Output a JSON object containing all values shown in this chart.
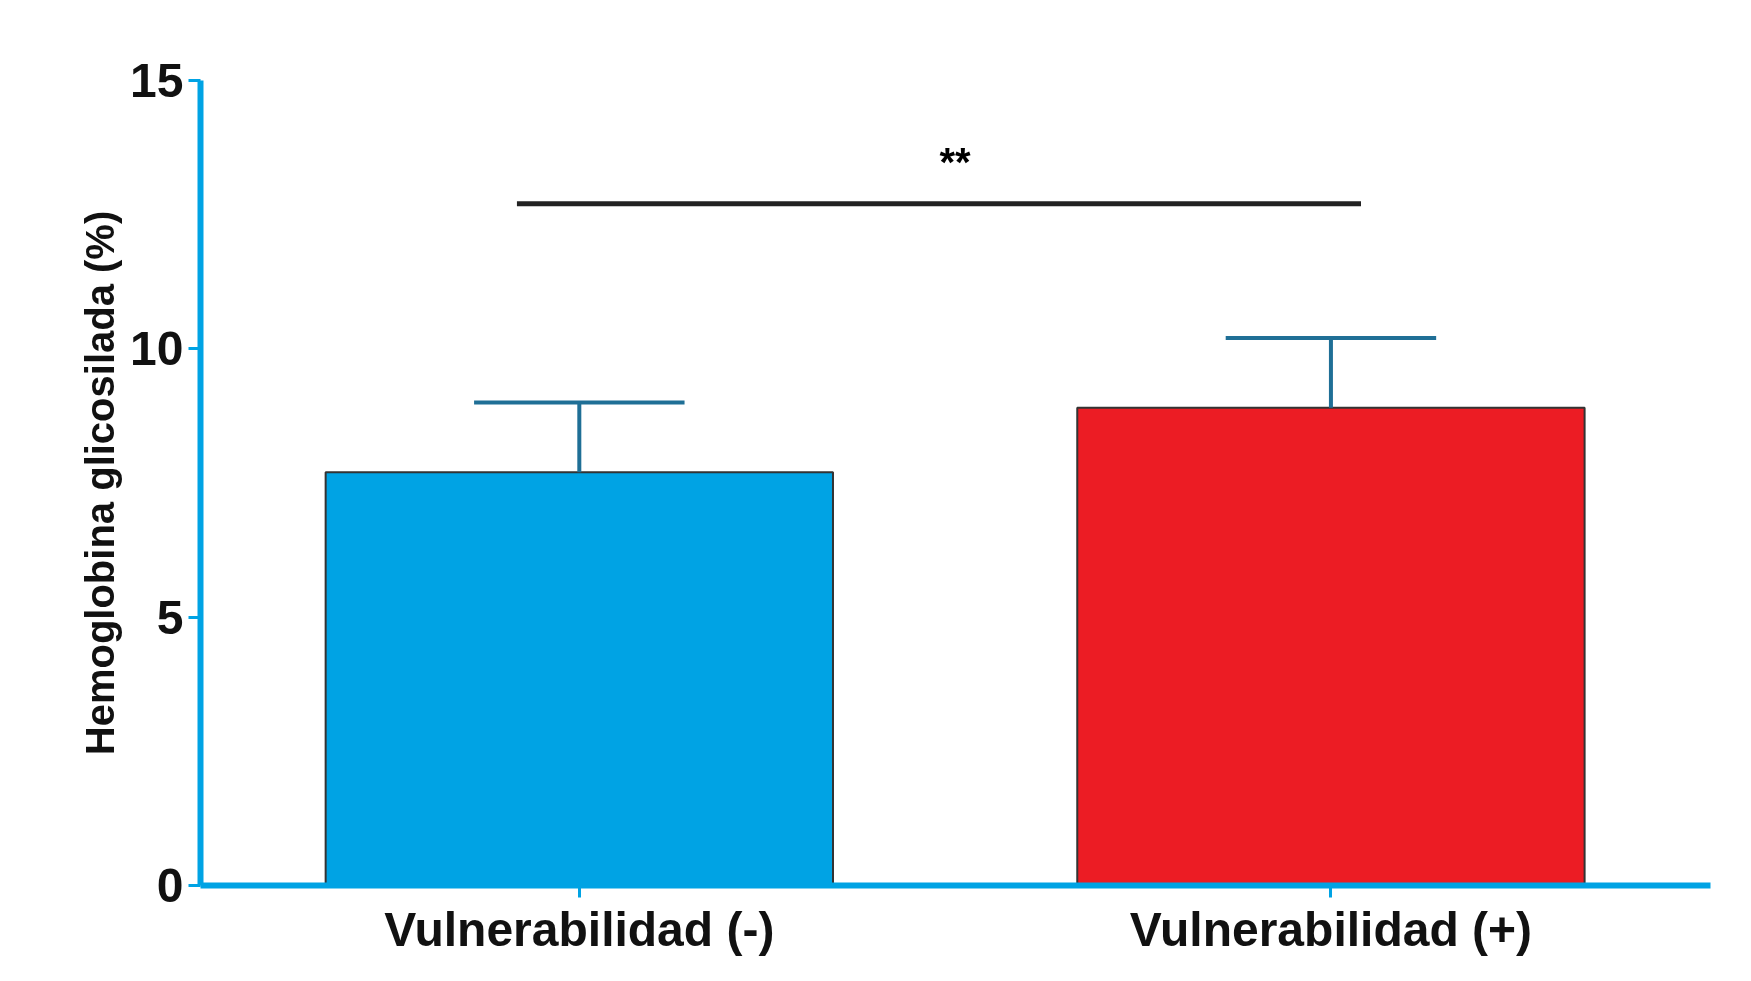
{
  "chart_data": {
    "type": "bar",
    "ylabel": "Hemoglobina glicosilada (%)",
    "categories": [
      "Vulnerabilidad (-)",
      "Vulnerabilidad (+)"
    ],
    "values": [
      7.7,
      8.9
    ],
    "colors": [
      "#00a3e4",
      "#ec1c24"
    ],
    "errors": [
      [
        7.7,
        9.0
      ],
      [
        8.9,
        10.2
      ]
    ],
    "ylim": [
      0,
      15
    ],
    "yticks": [
      0,
      5,
      10,
      15
    ],
    "annotations": [
      "**"
    ]
  }
}
